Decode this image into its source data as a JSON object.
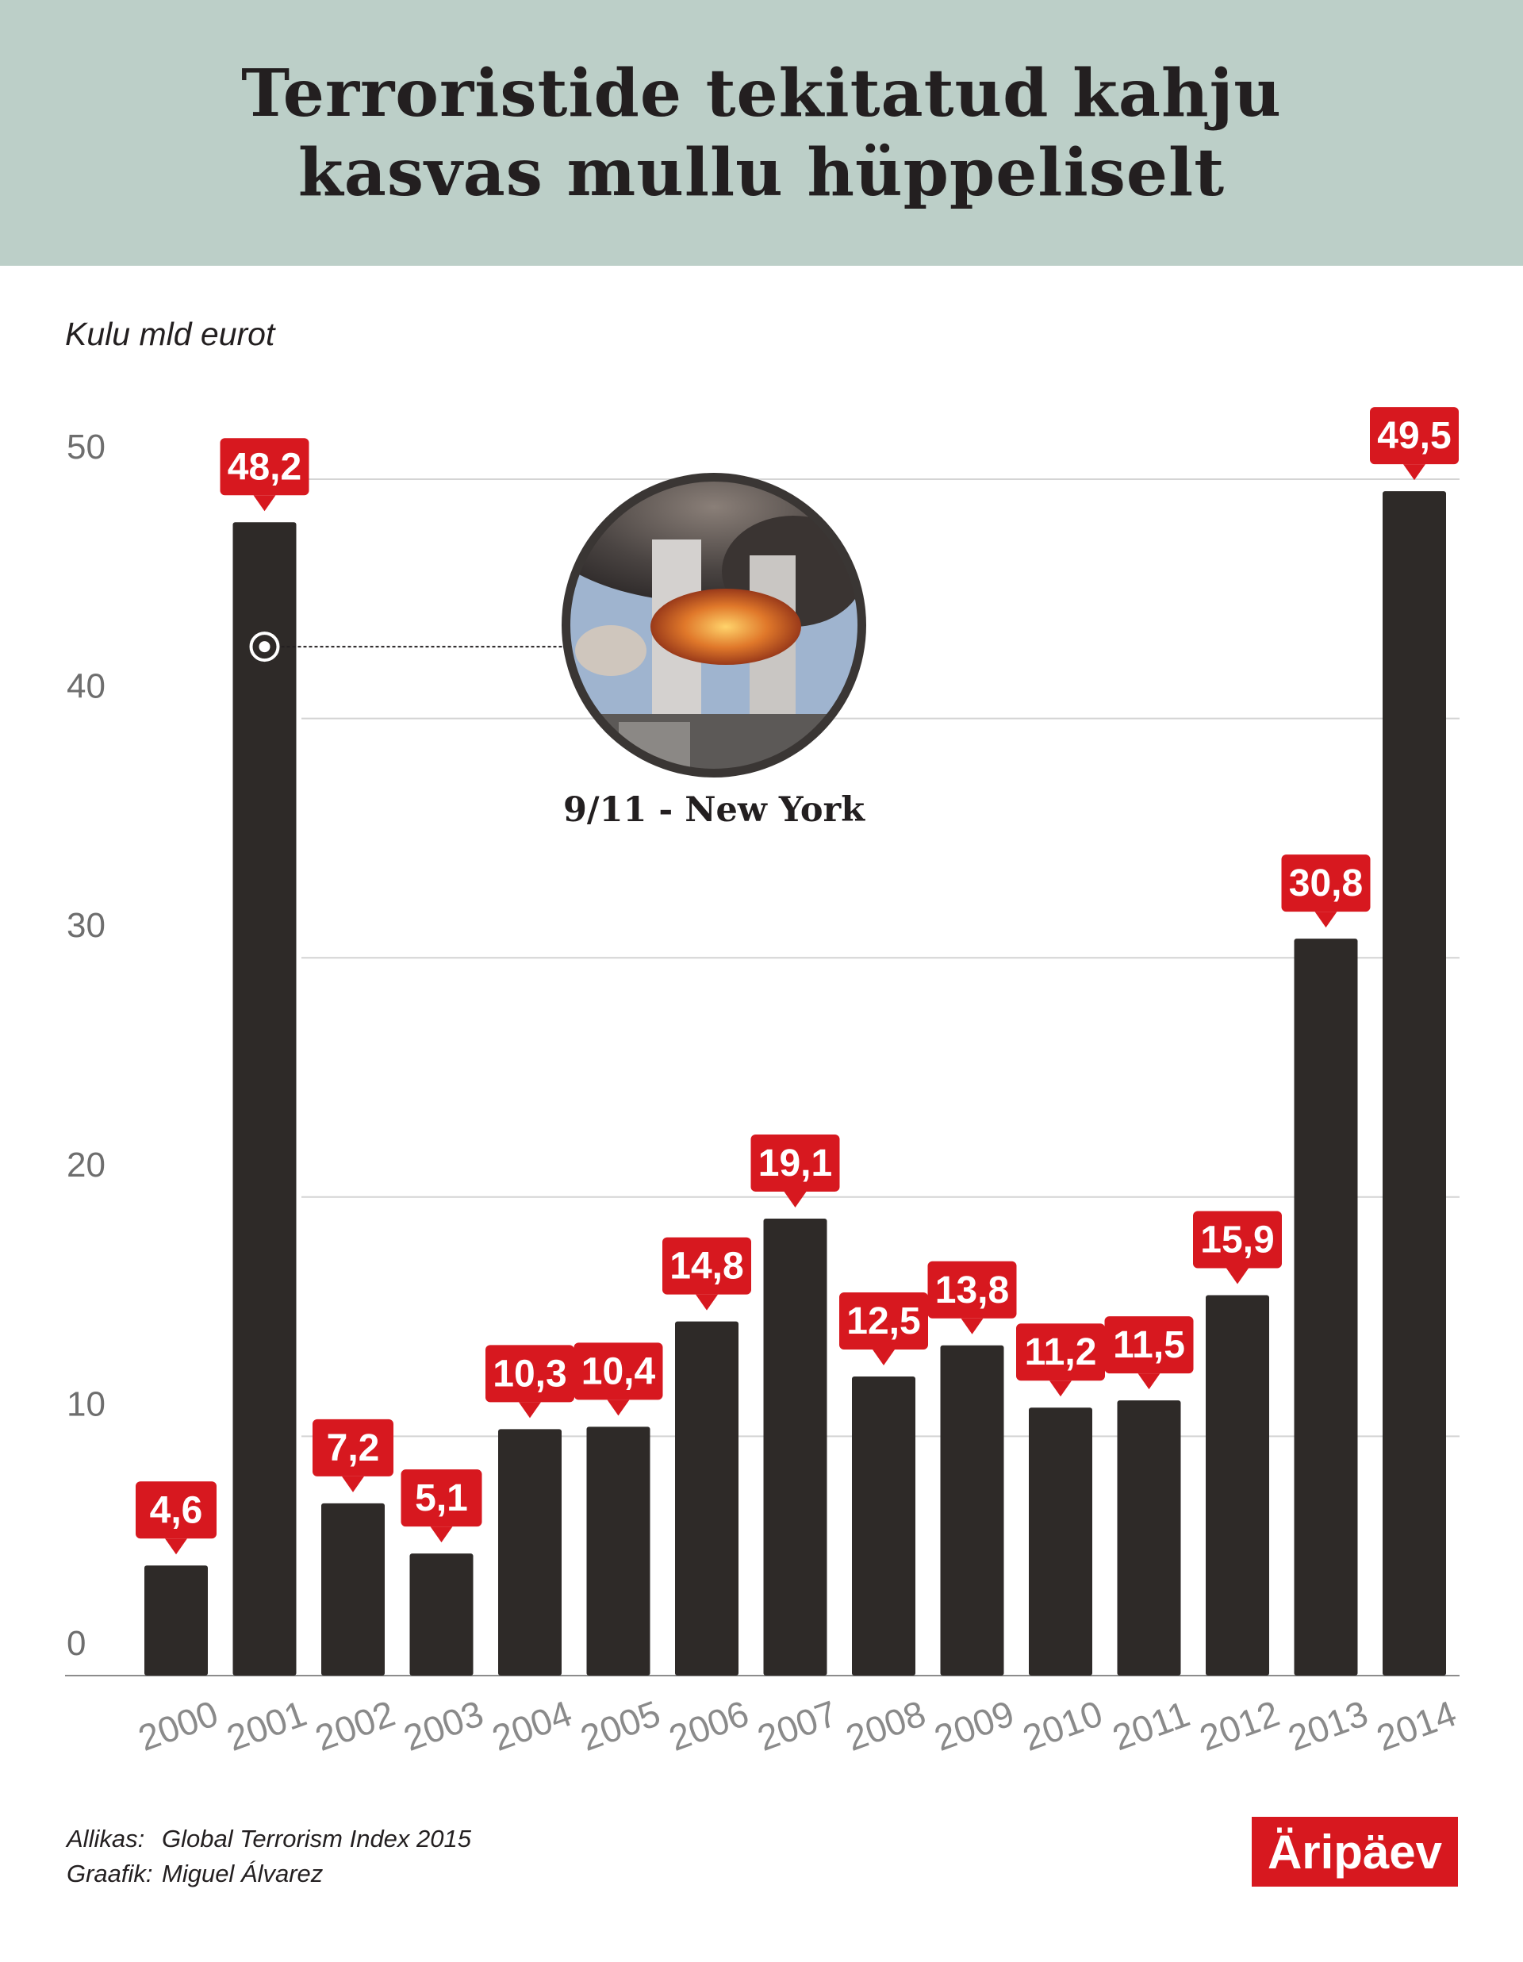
{
  "header": {
    "title_line1": "Terroristide tekitatud kahju",
    "title_line2": "kasvas mullu hüppeliselt"
  },
  "chart_data": {
    "type": "bar",
    "ylabel": "Kulu mld eurot",
    "categories": [
      "2000",
      "2001",
      "2002",
      "2003",
      "2004",
      "2005",
      "2006",
      "2007",
      "2008",
      "2009",
      "2010",
      "2011",
      "2012",
      "2013",
      "2014"
    ],
    "values": [
      4.6,
      48.2,
      7.2,
      5.1,
      10.3,
      10.4,
      14.8,
      19.1,
      12.5,
      13.8,
      11.2,
      11.5,
      15.9,
      30.8,
      49.5
    ],
    "value_labels": [
      "4,6",
      "48,2",
      "7,2",
      "5,1",
      "10,3",
      "10,4",
      "14,8",
      "19,1",
      "12,5",
      "13,8",
      "11,2",
      "11,5",
      "15,9",
      "30,8",
      "49,5"
    ],
    "ylim": [
      0,
      50
    ],
    "yticks": [
      0,
      10,
      20,
      30,
      40,
      50
    ],
    "grid": true,
    "bar_color": "#2e2a28",
    "label_color": "#d7181f",
    "annotation": {
      "category": "2001",
      "value": 43,
      "text": "9/11 - New York"
    }
  },
  "footer": {
    "source_label": "Allikas:",
    "source_value": "Global Terrorism  Index 2015",
    "graphic_label": "Graafik:",
    "graphic_value": "Miguel Álvarez"
  },
  "logo": {
    "text": "Äripäev"
  }
}
